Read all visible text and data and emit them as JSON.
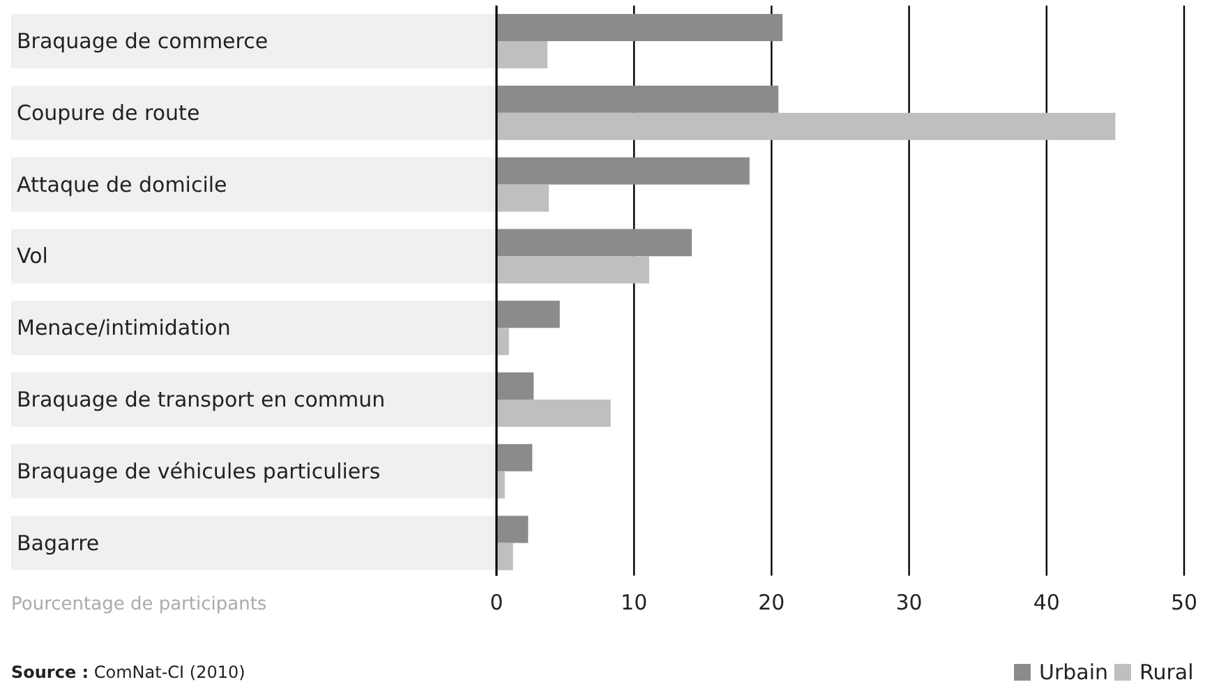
{
  "chart_data": {
    "type": "bar",
    "orientation": "horizontal",
    "categories": [
      "Braquage de commerce",
      "Coupure de route",
      "Attaque de domicile",
      "Vol",
      "Menace/intimidation",
      "Braquage de transport en commun",
      "Braquage de véhicules particuliers",
      "Bagarre"
    ],
    "series": [
      {
        "name": "Urbain",
        "color": "#8a8b8c",
        "values": [
          20.8,
          20.5,
          18.4,
          14.2,
          4.6,
          2.7,
          2.6,
          2.3
        ]
      },
      {
        "name": "Rural",
        "color": "#bebfc0",
        "values": [
          3.7,
          45.0,
          3.8,
          11.1,
          0.9,
          8.3,
          0.6,
          1.2
        ]
      }
    ],
    "xlim": [
      0,
      50
    ],
    "xticks": [
      0,
      10,
      20,
      30,
      40,
      50
    ],
    "grid": "x",
    "xlabel": "Pourcentage de participants",
    "legend": "bottom right",
    "annotations": [
      "Source : ComNat-CI (2010)"
    ]
  }
}
